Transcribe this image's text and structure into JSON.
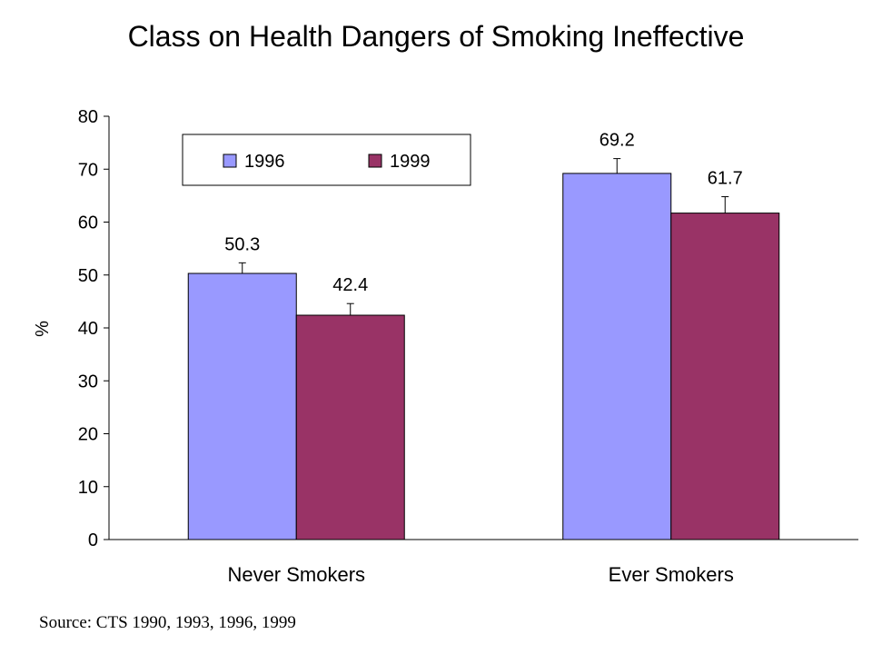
{
  "chart_data": {
    "type": "bar",
    "title": "Class on Health Dangers of Smoking Ineffective",
    "xlabel": "",
    "ylabel": "%",
    "ylim": [
      0,
      80
    ],
    "yticks": [
      0,
      10,
      20,
      30,
      40,
      50,
      60,
      70,
      80
    ],
    "categories": [
      "Never Smokers",
      "Ever Smokers"
    ],
    "series": [
      {
        "name": "1996",
        "values": [
          50.3,
          69.2
        ],
        "labels": [
          "50.3",
          "69.2"
        ],
        "error_upper": [
          52.3,
          72.0
        ],
        "color": "#9999ff"
      },
      {
        "name": "1999",
        "values": [
          42.4,
          61.7
        ],
        "labels": [
          "42.4",
          "61.7"
        ],
        "error_upper": [
          44.6,
          64.8
        ],
        "color": "#993366"
      }
    ],
    "legend": {
      "position": "top-left",
      "border": true
    },
    "grid": false
  },
  "source_note": "Source:  CTS 1990, 1993, 1996, 1999"
}
